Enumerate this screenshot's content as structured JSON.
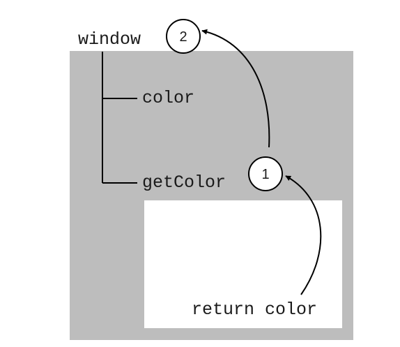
{
  "scope_tree": {
    "root_label": "window",
    "children": [
      "color",
      "getColor"
    ]
  },
  "inner_scope": {
    "code": "return color"
  },
  "lookup_steps": [
    "1",
    "2"
  ],
  "colors": {
    "global_scope_fill": "#bdbdbd",
    "local_scope_fill": "#ffffff",
    "stroke": "#000000",
    "text": "#1a1a1a"
  }
}
